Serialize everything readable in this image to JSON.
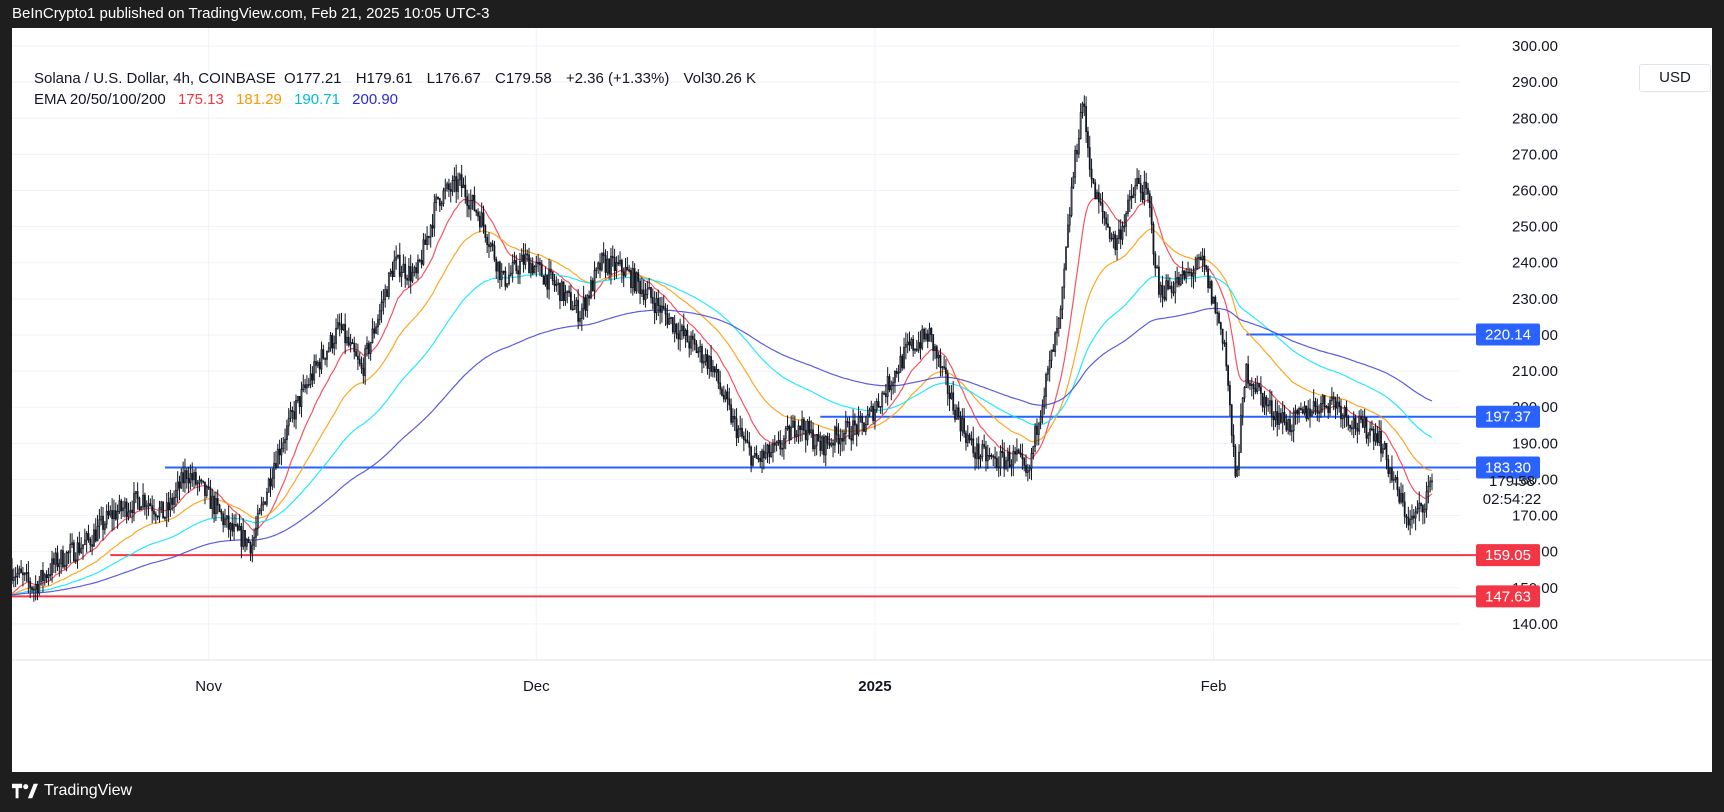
{
  "header": {
    "publish_text": "BeInCrypto1 published on TradingView.com, Feb 21, 2025 10:05 UTC-3"
  },
  "footer": {
    "brand": "TradingView"
  },
  "legend": {
    "symbol": "Solana / U.S. Dollar, 4h, COINBASE",
    "open_label": "O",
    "open": "177.21",
    "high_label": "H",
    "high": "179.61",
    "low_label": "L",
    "low": "176.67",
    "close_label": "C",
    "close": "179.58",
    "change": "+2.36 (+1.33%)",
    "vol_label": "Vol",
    "vol": "30.26 K",
    "ema_label": "EMA 20/50/100/200",
    "ema20": "175.13",
    "ema50": "181.29",
    "ema100": "190.71",
    "ema200": "200.90"
  },
  "currency": "USD",
  "colors": {
    "ema20": "#f23645",
    "ema50": "#ff9800",
    "ema100": "#00e5ff",
    "ema200": "#3f3fdc",
    "resistance": "#2962ff",
    "support": "#f23645",
    "candle": "#131722"
  },
  "chart_data": {
    "type": "line",
    "title": "Solana / U.S. Dollar, 4h, COINBASE",
    "ylim": [
      130,
      305
    ],
    "x_range": [
      "2024-10-14",
      "2025-02-21"
    ],
    "grid": true,
    "legend_placement": "top-left",
    "y_ticks": [
      "140.00",
      "150.00",
      "160.00",
      "170.00",
      "180.00",
      "190.00",
      "200.00",
      "210.00",
      "220.00",
      "230.00",
      "240.00",
      "250.00",
      "260.00",
      "270.00",
      "280.00",
      "290.00",
      "300.00"
    ],
    "x_ticks": [
      {
        "label": "Nov",
        "date": "2024-11-01",
        "bold": false
      },
      {
        "label": "Dec",
        "date": "2024-12-01",
        "bold": false
      },
      {
        "label": "2025",
        "date": "2025-01-01",
        "bold": true
      },
      {
        "label": "Feb",
        "date": "2025-02-01",
        "bold": false
      }
    ],
    "price_path": [
      [
        "2024-10-14",
        155
      ],
      [
        "2024-10-16",
        150
      ],
      [
        "2024-10-18",
        157
      ],
      [
        "2024-10-21",
        163
      ],
      [
        "2024-10-23",
        170
      ],
      [
        "2024-10-26",
        175
      ],
      [
        "2024-10-28",
        170
      ],
      [
        "2024-10-30",
        182
      ],
      [
        "2024-11-01",
        175
      ],
      [
        "2024-11-03",
        166
      ],
      [
        "2024-11-05",
        162
      ],
      [
        "2024-11-07",
        185
      ],
      [
        "2024-11-09",
        200
      ],
      [
        "2024-11-11",
        212
      ],
      [
        "2024-11-13",
        222
      ],
      [
        "2024-11-15",
        210
      ],
      [
        "2024-11-18",
        240
      ],
      [
        "2024-11-20",
        236
      ],
      [
        "2024-11-22",
        258
      ],
      [
        "2024-11-24",
        262
      ],
      [
        "2024-11-26",
        252
      ],
      [
        "2024-11-28",
        235
      ],
      [
        "2024-11-30",
        241
      ],
      [
        "2024-12-03",
        233
      ],
      [
        "2024-12-05",
        226
      ],
      [
        "2024-12-07",
        240
      ],
      [
        "2024-12-09",
        238
      ],
      [
        "2024-12-11",
        232
      ],
      [
        "2024-12-13",
        225
      ],
      [
        "2024-12-15",
        218
      ],
      [
        "2024-12-17",
        212
      ],
      [
        "2024-12-19",
        196
      ],
      [
        "2024-12-21",
        185
      ],
      [
        "2024-12-23",
        188
      ],
      [
        "2024-12-25",
        196
      ],
      [
        "2024-12-27",
        189
      ],
      [
        "2024-12-29",
        193
      ],
      [
        "2024-12-31",
        195
      ],
      [
        "2025-01-02",
        205
      ],
      [
        "2025-01-04",
        216
      ],
      [
        "2025-01-06",
        220
      ],
      [
        "2025-01-08",
        202
      ],
      [
        "2025-01-10",
        188
      ],
      [
        "2025-01-12",
        185
      ],
      [
        "2025-01-14",
        186
      ],
      [
        "2025-01-15",
        180
      ],
      [
        "2025-01-16",
        198
      ],
      [
        "2025-01-18",
        225
      ],
      [
        "2025-01-19",
        260
      ],
      [
        "2025-01-20",
        285
      ],
      [
        "2025-01-21",
        260
      ],
      [
        "2025-01-23",
        245
      ],
      [
        "2025-01-25",
        262
      ],
      [
        "2025-01-26",
        258
      ],
      [
        "2025-01-27",
        232
      ],
      [
        "2025-01-29",
        235
      ],
      [
        "2025-01-31",
        240
      ],
      [
        "2025-02-02",
        218
      ],
      [
        "2025-02-03",
        180
      ],
      [
        "2025-02-04",
        210
      ],
      [
        "2025-02-06",
        200
      ],
      [
        "2025-02-08",
        195
      ],
      [
        "2025-02-10",
        200
      ],
      [
        "2025-02-12",
        202
      ],
      [
        "2025-02-14",
        195
      ],
      [
        "2025-02-16",
        193
      ],
      [
        "2025-02-18",
        175
      ],
      [
        "2025-02-19",
        168
      ],
      [
        "2025-02-20",
        172
      ],
      [
        "2025-02-21",
        179.58
      ]
    ],
    "series": [
      {
        "name": "EMA 20",
        "last": 175.13
      },
      {
        "name": "EMA 50",
        "last": 181.29
      },
      {
        "name": "EMA 100",
        "last": 190.71
      },
      {
        "name": "EMA 200",
        "last": 200.9
      }
    ],
    "horizontal_levels": [
      {
        "value": 220.14,
        "label": "220.14",
        "kind": "resistance",
        "start": "2025-02-04"
      },
      {
        "value": 197.37,
        "label": "197.37",
        "kind": "resistance",
        "start": "2024-12-27"
      },
      {
        "value": 183.3,
        "label": "183.30",
        "kind": "resistance",
        "start": "2024-10-28"
      },
      {
        "value": 159.05,
        "label": "159.05",
        "kind": "support",
        "start": "2024-10-23"
      },
      {
        "value": 147.63,
        "label": "147.63",
        "kind": "support",
        "start": "2024-10-14"
      }
    ],
    "last_price": {
      "value": 179.58,
      "label": "179.58",
      "countdown": "02:54:22"
    },
    "annotations": []
  }
}
